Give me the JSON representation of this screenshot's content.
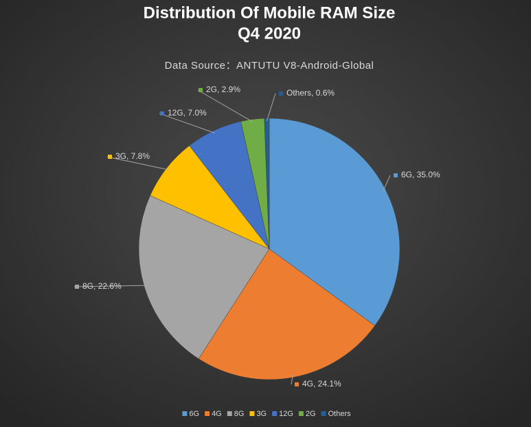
{
  "chart_data": {
    "type": "pie",
    "title": [
      "Distribution Of Mobile RAM Size",
      "Q4 2020"
    ],
    "subtitle": "Data Source：ANTUTU V8-Android-Global",
    "categories": [
      "6G",
      "4G",
      "8G",
      "3G",
      "12G",
      "2G",
      "Others"
    ],
    "values": [
      35.0,
      24.1,
      22.6,
      7.8,
      7.0,
      2.9,
      0.6
    ],
    "value_labels": [
      "6G, 35.0%",
      "4G, 24.1%",
      "8G, 22.6%",
      "3G, 7.8%",
      "12G, 7.0%",
      "2G, 2.9%",
      "Others, 0.6%"
    ],
    "colors": [
      "#5b9bd5",
      "#ed7d31",
      "#a5a5a5",
      "#ffc000",
      "#4472c4",
      "#70ad47",
      "#255e91"
    ],
    "legend": "bottom"
  }
}
